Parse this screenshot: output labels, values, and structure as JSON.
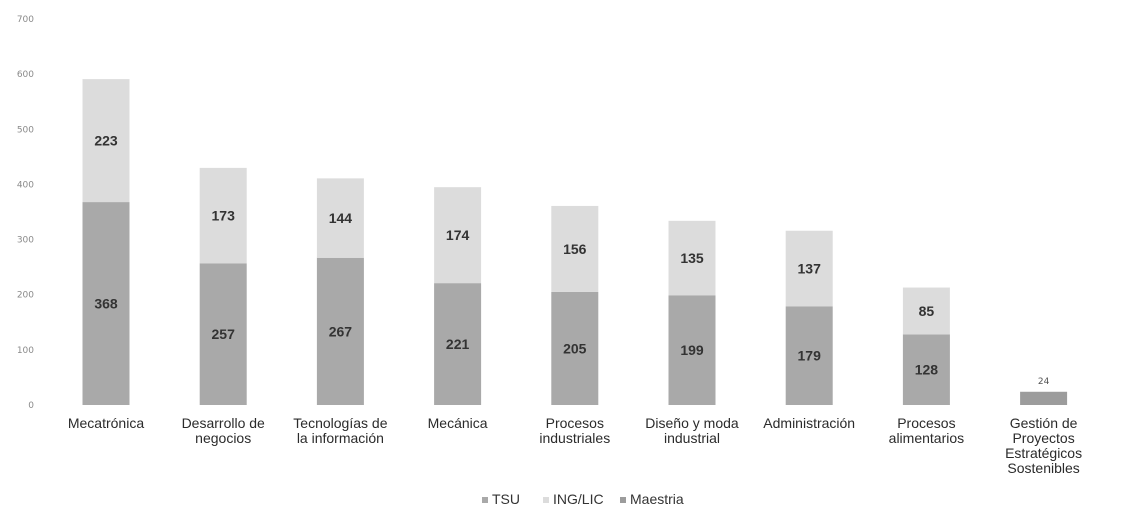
{
  "chart_data": {
    "type": "bar",
    "stacked": true,
    "categories": [
      "Mecatrónica",
      "Desarrollo de negocios",
      "Tecnologías de la información",
      "Mecánica",
      "Procesos industriales",
      "Diseño y moda industrial",
      "Administración",
      "Procesos alimentarios",
      "Gestión de Proyectos Estratégicos Sostenibles"
    ],
    "category_lines": [
      [
        "Mecatrónica"
      ],
      [
        "Desarrollo de",
        "negocios"
      ],
      [
        "Tecnologías de",
        "la información"
      ],
      [
        "Mecánica"
      ],
      [
        "Procesos",
        "industriales"
      ],
      [
        "Diseño y moda",
        "industrial"
      ],
      [
        "Administración"
      ],
      [
        "Procesos",
        "alimentarios"
      ],
      [
        "Gestión de",
        "Proyectos",
        "Estratégicos",
        "Sostenibles"
      ]
    ],
    "series": [
      {
        "name": "TSU",
        "values": [
          368,
          257,
          267,
          221,
          205,
          199,
          179,
          128,
          0
        ],
        "color": "#a9a9a9"
      },
      {
        "name": "ING/LIC",
        "values": [
          223,
          173,
          144,
          174,
          156,
          135,
          137,
          85,
          0
        ],
        "color": "#dcdcdc"
      },
      {
        "name": "Maestria",
        "values": [
          0,
          0,
          0,
          0,
          0,
          0,
          0,
          0,
          24
        ],
        "color": "#9c9c9c"
      }
    ],
    "ylim": [
      0,
      700
    ],
    "yticks": [
      "0",
      "100",
      "200",
      "300",
      "400",
      "500",
      "600",
      "700"
    ],
    "title": "",
    "xlabel": "",
    "ylabel": "",
    "grid": false,
    "legend_position": "bottom"
  }
}
